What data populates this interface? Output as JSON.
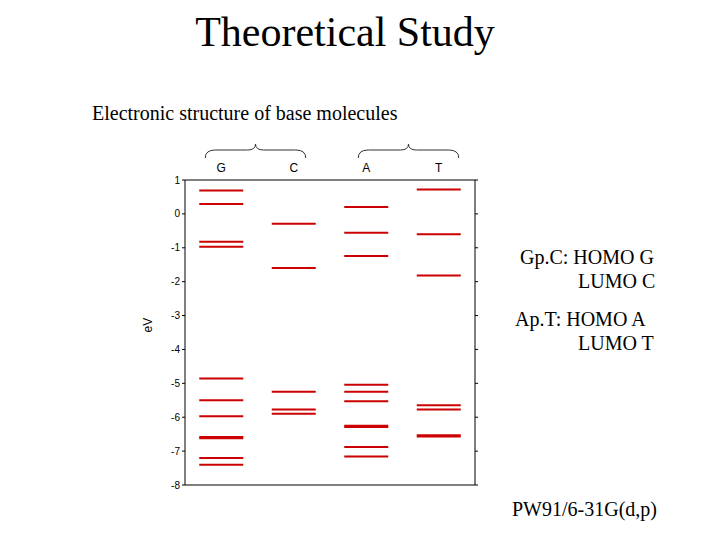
{
  "chart_data": {
    "type": "energy_levels",
    "title": "Theoretical Study",
    "subtitle": "Electronic structure of base molecules",
    "y_label": "eV",
    "categories": [
      "G",
      "C",
      "A",
      "T"
    ],
    "levels": [
      [
        0.69,
        0.29,
        -0.82,
        -0.97,
        -4.86,
        -5.5,
        -5.97,
        -6.58,
        -6.62,
        -7.2,
        -7.4
      ],
      [
        -0.29,
        -1.6,
        -5.25,
        -5.77,
        -5.9
      ],
      [
        0.2,
        -0.56,
        -1.24,
        -5.04,
        -5.25,
        -5.53,
        -6.25,
        -6.29,
        -6.88,
        -7.16
      ],
      [
        0.72,
        -0.6,
        -1.82,
        -5.65,
        -5.77,
        -6.53,
        -6.57
      ]
    ],
    "color": "#cc0000",
    "ylim": [
      -8,
      1
    ],
    "yticks": [
      -8,
      -7,
      -6,
      -5,
      -4,
      -3,
      -2,
      -1,
      0,
      1
    ],
    "annotations": [
      "Gp.C: HOMO G",
      "LUMO C",
      "Ap.T: HOMO A",
      "LUMO T",
      "PW91/6-31G(d,p)"
    ]
  }
}
